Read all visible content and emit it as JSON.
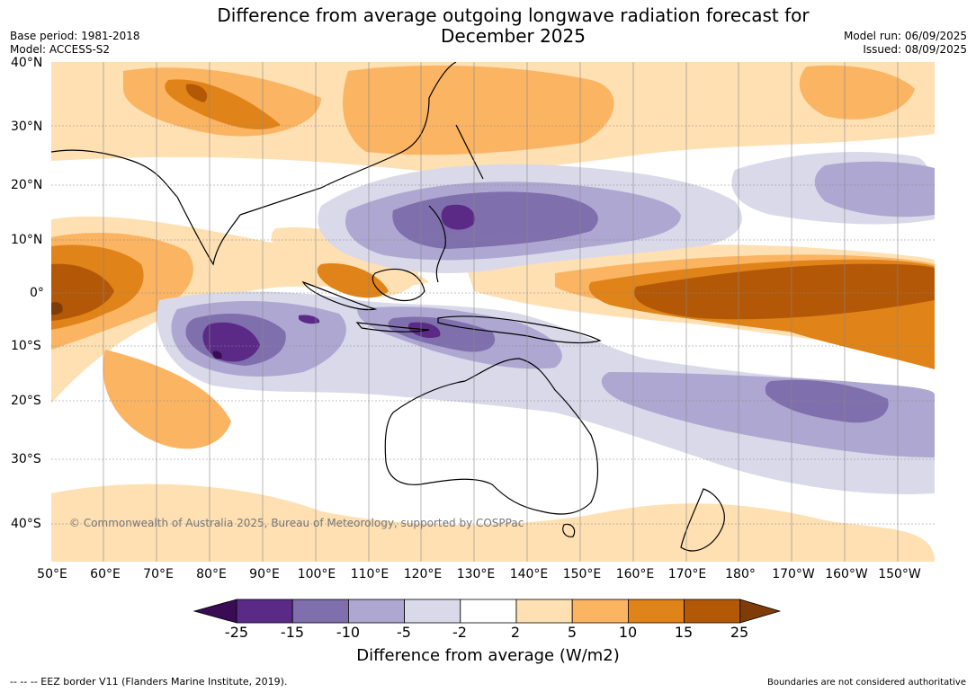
{
  "header": {
    "title_line1": "Difference from average outgoing longwave radiation forecast for",
    "title_line2": "December 2025",
    "base_period": "Base period: 1981-2018",
    "model": "Model: ACCESS-S2",
    "model_run": "Model run: 06/09/2025",
    "issued": "Issued: 08/09/2025"
  },
  "map": {
    "latitude_labels": [
      "40°N",
      "30°N",
      "20°N",
      "10°N",
      "0°",
      "10°S",
      "20°S",
      "30°S",
      "40°S"
    ],
    "longitude_labels": [
      "50°E",
      "60°E",
      "70°E",
      "80°E",
      "90°E",
      "100°E",
      "110°E",
      "120°E",
      "130°E",
      "140°E",
      "150°E",
      "160°E",
      "170°E",
      "180°",
      "170°W",
      "160°W",
      "150°W"
    ],
    "copyright": "© Commonwealth of Australia 2025, Bureau of Meteorology, supported by COSPPac",
    "colors": {
      "land_outline": "#000000",
      "border": "#808080",
      "gridline": "#888888",
      "ocean_neutral": "#ffffff"
    }
  },
  "legend": {
    "ticks": [
      "-25",
      "-15",
      "-10",
      "-5",
      "-2",
      "2",
      "5",
      "10",
      "15",
      "25"
    ],
    "colors": [
      "#3a0c55",
      "#5b2a87",
      "#7f6fad",
      "#aea7d1",
      "#d9d9ea",
      "#ffffff",
      "#fee0b3",
      "#fbb462",
      "#e08318",
      "#b35807",
      "#7f3b08"
    ],
    "label": "Difference from average (W/m2)"
  },
  "footer": {
    "eez_note": "-- -- -- EEZ border V11 (Flanders Marine Institute, 2019).",
    "boundaries_note": "Boundaries are not considered authoritative"
  }
}
